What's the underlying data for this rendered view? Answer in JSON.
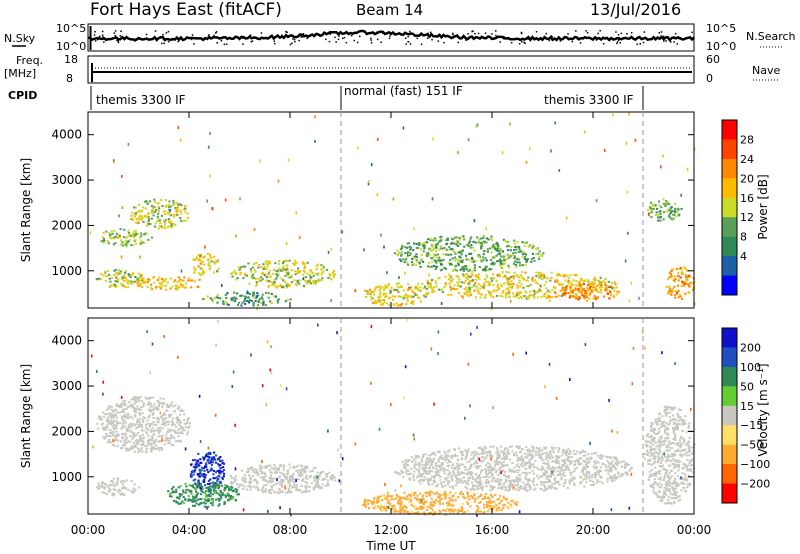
{
  "header": {
    "title": "Fort Hays East (fitACF)",
    "beam": "Beam 14",
    "date": "13/Jul/2016"
  },
  "top_panels": {
    "nsky_label": "N.Sky",
    "nsky_ticks": [
      "10^5",
      "10^0"
    ],
    "nsearch_label": "N.Search",
    "nsearch_ticks": [
      "10^5",
      "10^0"
    ],
    "freq_label": "Freq.",
    "freq_unit": "[MHz]",
    "freq_ticks": [
      "18",
      "8"
    ],
    "nave_label": "Nave",
    "nave_ticks": [
      "60",
      "0"
    ],
    "cpid_label": "CPID",
    "cpid_segments": [
      {
        "name": "themis 3300 IF",
        "start_h": 0,
        "end_h": 10
      },
      {
        "name": "normal (fast) 151 IF",
        "start_h": 10,
        "end_h": 22
      },
      {
        "name": "themis 3300 IF",
        "start_h": 18.9,
        "end_h": 22
      }
    ]
  },
  "axes": {
    "xlabel": "Time UT",
    "x_ticks": [
      "00:00",
      "04:00",
      "08:00",
      "12:00",
      "16:00",
      "20:00",
      "00:00"
    ],
    "ylabel": "Slant Range [km]",
    "y_ticks": [
      "4000",
      "3000",
      "2000",
      "1000"
    ]
  },
  "colorbars": {
    "power": {
      "label": "Power [dB]",
      "ticks": [
        "28",
        "24",
        "20",
        "16",
        "12",
        "8",
        "4"
      ],
      "colors": [
        "#ff0000",
        "#ff4400",
        "#ff8800",
        "#ffbb00",
        "#c8dc28",
        "#5aa05a",
        "#2e8b57",
        "#1f5fa8",
        "#0000ff"
      ]
    },
    "velocity": {
      "label": "Velocity [m s⁻¹]",
      "ticks": [
        "200",
        "100",
        "50",
        "15",
        "−15",
        "−50",
        "−100",
        "−200"
      ],
      "colors": [
        "#1010c8",
        "#2050c0",
        "#2e8b57",
        "#66cc33",
        "#c8c8c0",
        "#ffe066",
        "#ffaa33",
        "#ff6600",
        "#ff0000"
      ]
    }
  },
  "chart_data": {
    "type": "heatmap",
    "x_range_hours": [
      0,
      24
    ],
    "y_range_km": [
      180,
      4500
    ],
    "power_blobs_dB": [
      {
        "t0": 0.3,
        "t1": 2.5,
        "r0": 1550,
        "r1": 1950,
        "value": 14
      },
      {
        "t0": 1.6,
        "t1": 4.0,
        "r0": 1950,
        "r1": 2600,
        "value": 16
      },
      {
        "t0": 0.3,
        "t1": 2.2,
        "r0": 650,
        "r1": 1050,
        "value": 16
      },
      {
        "t0": 1.6,
        "t1": 4.6,
        "r0": 600,
        "r1": 900,
        "value": 20
      },
      {
        "t0": 4.0,
        "t1": 5.2,
        "r0": 900,
        "r1": 1400,
        "value": 18
      },
      {
        "t0": 5.5,
        "t1": 9.8,
        "r0": 650,
        "r1": 1250,
        "value": 16
      },
      {
        "t0": 4.5,
        "t1": 8.0,
        "r0": 250,
        "r1": 550,
        "value": 10
      },
      {
        "t0": 10.8,
        "t1": 13.5,
        "r0": 250,
        "r1": 750,
        "value": 18
      },
      {
        "t0": 12.0,
        "t1": 18.0,
        "r0": 1000,
        "r1": 1800,
        "value": 12
      },
      {
        "t0": 13.0,
        "t1": 21.0,
        "r0": 400,
        "r1": 1000,
        "value": 18
      },
      {
        "t0": 18.5,
        "t1": 21.0,
        "r0": 350,
        "r1": 750,
        "value": 24
      },
      {
        "t0": 22.0,
        "t1": 23.5,
        "r0": 2100,
        "r1": 2600,
        "value": 12
      },
      {
        "t0": 22.8,
        "t1": 24.0,
        "r0": 400,
        "r1": 1100,
        "value": 22
      }
    ],
    "velocity_blobs_ms": [
      {
        "t0": 0.3,
        "t1": 4.0,
        "r0": 1550,
        "r1": 2800,
        "value": 0
      },
      {
        "t0": 0.3,
        "t1": 2.0,
        "r0": 600,
        "r1": 1000,
        "value": 0
      },
      {
        "t0": 4.0,
        "t1": 5.4,
        "r0": 700,
        "r1": 1600,
        "value": 150
      },
      {
        "t0": 3.0,
        "t1": 6.0,
        "r0": 350,
        "r1": 900,
        "value": 40
      },
      {
        "t0": 5.5,
        "t1": 9.8,
        "r0": 650,
        "r1": 1300,
        "value": 0
      },
      {
        "t0": 10.8,
        "t1": 17.0,
        "r0": 180,
        "r1": 700,
        "value": -40
      },
      {
        "t0": 12.0,
        "t1": 21.5,
        "r0": 700,
        "r1": 1700,
        "value": 0
      },
      {
        "t0": 22.0,
        "t1": 24.0,
        "r0": 400,
        "r1": 2600,
        "value": 0
      }
    ]
  }
}
